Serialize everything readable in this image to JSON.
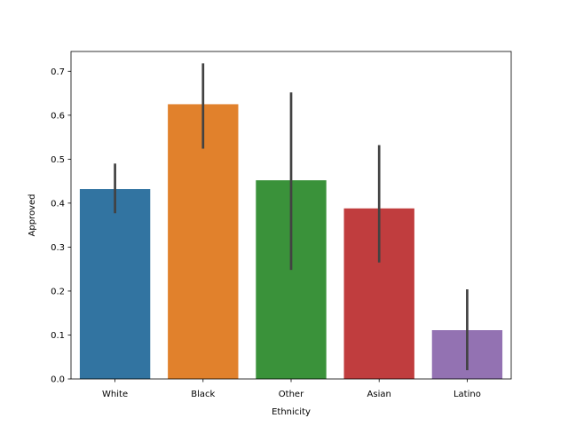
{
  "chart_data": {
    "type": "bar",
    "title": "",
    "xlabel": "Ethnicity",
    "ylabel": "Approved",
    "categories": [
      "White",
      "Black",
      "Other",
      "Asian",
      "Latino"
    ],
    "values": [
      0.432,
      0.625,
      0.452,
      0.388,
      0.111
    ],
    "error_low": [
      0.377,
      0.524,
      0.248,
      0.265,
      0.02
    ],
    "error_high": [
      0.49,
      0.718,
      0.652,
      0.532,
      0.204
    ],
    "colors": [
      "#3274a1",
      "#e1812c",
      "#3a923a",
      "#c03d3e",
      "#9372b2"
    ],
    "error_color": "#424242",
    "ylim": [
      0,
      0.745
    ],
    "yticks": [
      0.0,
      0.1,
      0.2,
      0.3,
      0.4,
      0.5,
      0.6,
      0.7
    ],
    "ytick_labels": [
      "0.0",
      "0.1",
      "0.2",
      "0.3",
      "0.4",
      "0.5",
      "0.6",
      "0.7"
    ],
    "grid": false,
    "legend": false
  }
}
